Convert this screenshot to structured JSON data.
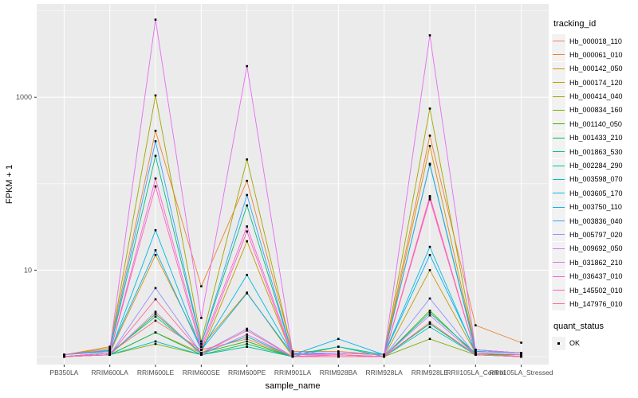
{
  "chart_data": {
    "type": "line",
    "title": "",
    "xlabel": "sample_name",
    "ylabel": "FPKM + 1",
    "y_scale": "log10",
    "y_tick_labels": [
      "10",
      "1000"
    ],
    "y_major_breaks": [
      10,
      1000
    ],
    "y_minor_breaks": [
      1,
      100,
      10000
    ],
    "ylim": [
      0.81,
      12000
    ],
    "grid": true,
    "legend_position": "right",
    "panel_bg": "#ebebeb",
    "gridline_color": "#ffffff",
    "tick_label_color": "#4d4d4d",
    "axis_title_color": "#000000",
    "point_color": "#000000",
    "point_shape": "square",
    "categories": [
      "PB350LA",
      "RRIM600LA",
      "RRIM600LE",
      "RRIM600SE",
      "RRIM600PE",
      "RRIM901LA",
      "RRIM928BA",
      "RRIM928LA",
      "RRIM928LE",
      "RRII105LA_Control",
      "RRII105LA_Stressed"
    ],
    "series": [
      {
        "name": "Hb_000018_110",
        "color": "#F8766D",
        "values": [
          1.0,
          1.1,
          2.6,
          1.2,
          1.6,
          1.0,
          1.05,
          1.0,
          72,
          1.1,
          1.0
        ]
      },
      {
        "name": "Hb_000061_010",
        "color": "#EA8331",
        "values": [
          1.05,
          1.3,
          410,
          6.5,
          108,
          1.15,
          1.15,
          1.05,
          360,
          2.3,
          1.45
        ]
      },
      {
        "name": "Hb_000142_050",
        "color": "#D89000",
        "values": [
          1.0,
          1.1,
          15,
          1.3,
          5.5,
          1.0,
          1.05,
          1.0,
          274,
          1.2,
          1.1
        ]
      },
      {
        "name": "Hb_000174_120",
        "color": "#C09B00",
        "values": [
          1.0,
          1.05,
          1.9,
          1.1,
          21.6,
          1.0,
          1.0,
          1.0,
          10,
          1.1,
          1.0
        ]
      },
      {
        "name": "Hb_000414_040",
        "color": "#A3A500",
        "values": [
          1.05,
          1.25,
          1050,
          1.5,
          191,
          1.1,
          1.1,
          1.05,
          740,
          1.2,
          1.1
        ]
      },
      {
        "name": "Hb_000834_160",
        "color": "#7CAE00",
        "values": [
          1.0,
          1.05,
          1.4,
          1.05,
          1.3,
          1.0,
          1.0,
          1.0,
          1.6,
          1.05,
          1.0
        ]
      },
      {
        "name": "Hb_001140_050",
        "color": "#39B600",
        "values": [
          1.0,
          1.05,
          3.1,
          1.1,
          1.5,
          1.0,
          1.0,
          1.0,
          3.4,
          1.05,
          1.05
        ]
      },
      {
        "name": "Hb_001433_210",
        "color": "#00BB4E",
        "values": [
          1.0,
          1.05,
          1.9,
          1.05,
          1.4,
          1.0,
          1.0,
          1.0,
          2.4,
          1.05,
          1.0
        ]
      },
      {
        "name": "Hb_001863_530",
        "color": "#00BF7D",
        "values": [
          1.05,
          1.18,
          210,
          1.4,
          56,
          1.05,
          1.3,
          1.05,
          166,
          1.15,
          1.1
        ]
      },
      {
        "name": "Hb_002284_290",
        "color": "#00C1A3",
        "values": [
          1.0,
          1.1,
          2.9,
          1.1,
          1.7,
          1.0,
          1.3,
          1.0,
          3.2,
          1.1,
          1.05
        ]
      },
      {
        "name": "Hb_003598_070",
        "color": "#00BFC4",
        "values": [
          1.0,
          1.05,
          1.5,
          1.05,
          1.3,
          1.0,
          1.0,
          1.0,
          2.2,
          1.05,
          1.0
        ]
      },
      {
        "name": "Hb_003605_170",
        "color": "#00BAE0",
        "values": [
          1.0,
          1.1,
          29,
          1.2,
          8.8,
          1.05,
          1.1,
          1.05,
          18.6,
          1.1,
          1.05
        ]
      },
      {
        "name": "Hb_003750_110",
        "color": "#00B0F6",
        "values": [
          1.05,
          1.15,
          17,
          1.2,
          5.4,
          1.05,
          1.6,
          1.05,
          15,
          1.15,
          1.1
        ]
      },
      {
        "name": "Hb_003836_040",
        "color": "#35A2FF",
        "values": [
          1.05,
          1.2,
          310,
          1.4,
          74,
          1.05,
          1.1,
          1.05,
          170,
          1.2,
          1.1
        ]
      },
      {
        "name": "Hb_005797_020",
        "color": "#9590FF",
        "values": [
          1.0,
          1.05,
          6.2,
          1.1,
          2.1,
          1.0,
          1.0,
          1.0,
          4.7,
          1.05,
          1.0
        ]
      },
      {
        "name": "Hb_009692_050",
        "color": "#C77CFF",
        "values": [
          1.0,
          1.05,
          3.3,
          1.05,
          1.8,
          1.0,
          1.0,
          1.0,
          3.0,
          1.05,
          1.0
        ]
      },
      {
        "name": "Hb_031862_210",
        "color": "#E76BF3",
        "values": [
          1.05,
          1.2,
          7900,
          2.8,
          2290,
          1.1,
          1.1,
          1.05,
          5200,
          1.2,
          1.1
        ]
      },
      {
        "name": "Hb_036437_010",
        "color": "#FA62DB",
        "values": [
          1.0,
          1.1,
          115,
          1.3,
          32,
          1.05,
          1.05,
          1.0,
          70,
          1.1,
          1.05
        ]
      },
      {
        "name": "Hb_145502_010",
        "color": "#FF62BC",
        "values": [
          1.0,
          1.1,
          93,
          1.2,
          28,
          1.0,
          1.05,
          1.0,
          66,
          1.1,
          1.05
        ]
      },
      {
        "name": "Hb_147976_010",
        "color": "#FF6A98",
        "values": [
          1.0,
          1.05,
          4.6,
          1.1,
          2.0,
          1.0,
          1.0,
          1.0,
          2.5,
          1.05,
          1.0
        ]
      }
    ],
    "legend": {
      "tracking_title": "tracking_id",
      "quant_title": "quant_status",
      "quant_items": [
        {
          "label": "OK"
        }
      ]
    }
  }
}
